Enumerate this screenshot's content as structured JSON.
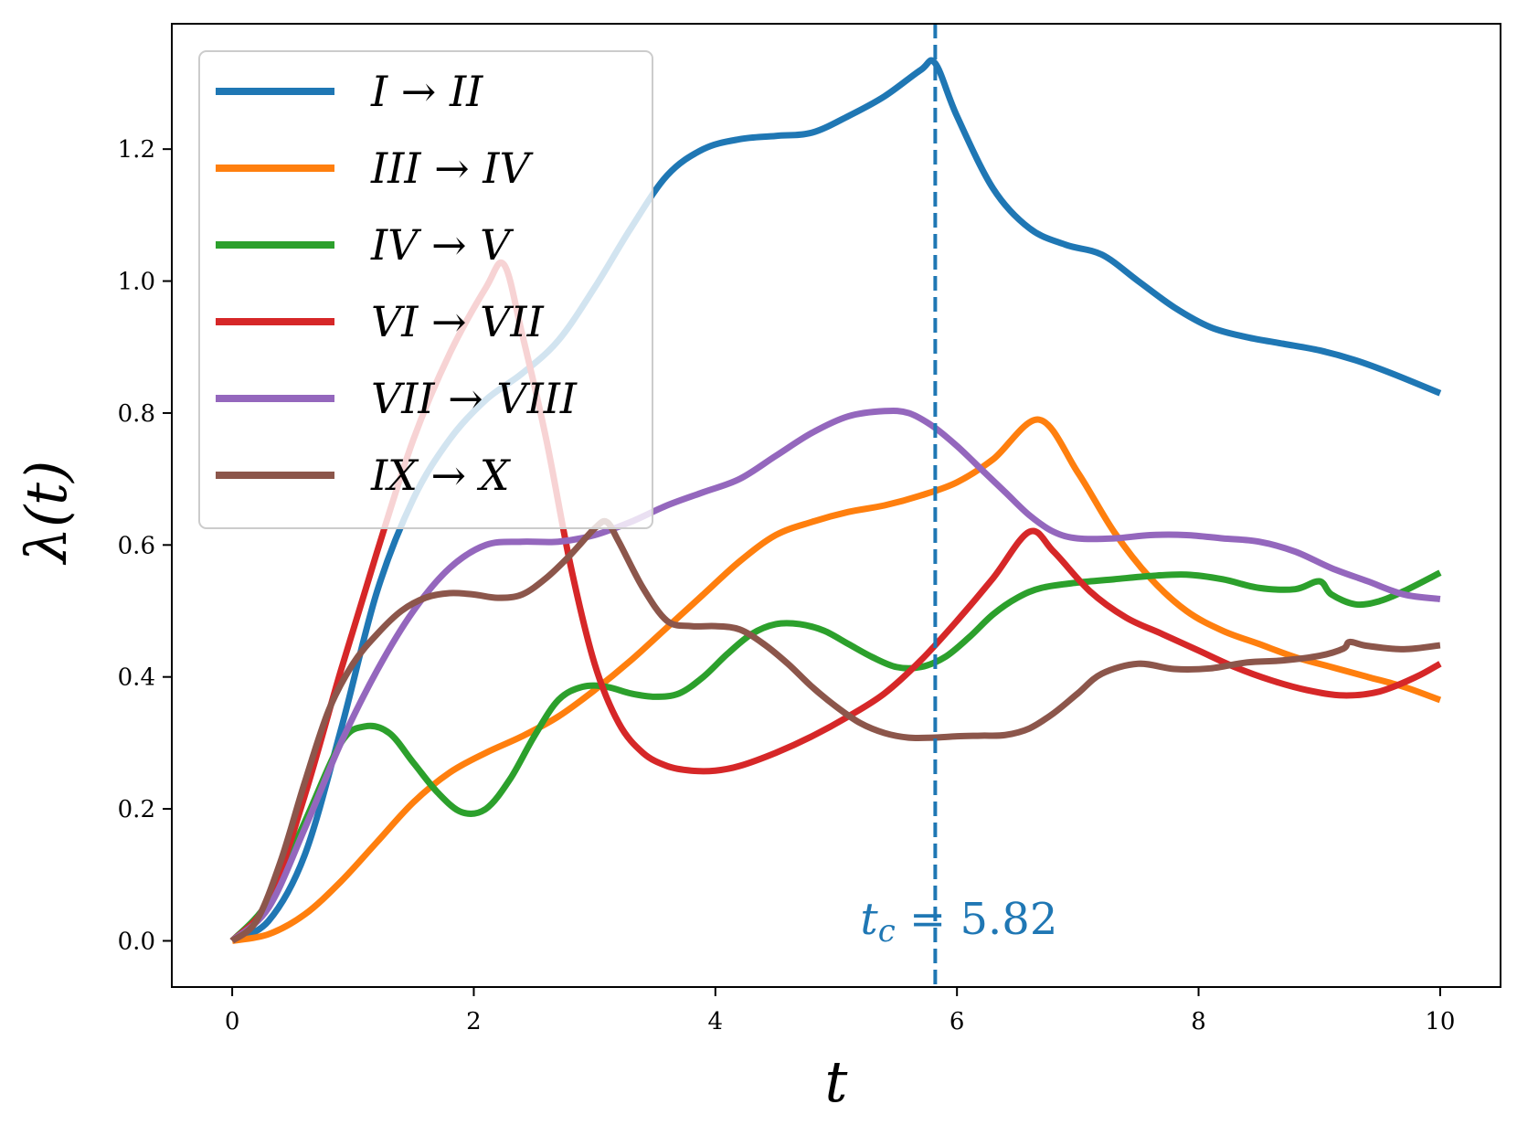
{
  "chart_data": {
    "type": "line",
    "xlabel": "t",
    "ylabel": "λ(t)",
    "xlim": [
      -0.5,
      10.5
    ],
    "ylim": [
      -0.07,
      1.39
    ],
    "xticks": [
      0,
      2,
      4,
      6,
      8,
      10
    ],
    "xtick_labels": [
      "0",
      "2",
      "4",
      "6",
      "8",
      "10"
    ],
    "yticks": [
      0.0,
      0.2,
      0.4,
      0.6,
      0.8,
      1.0,
      1.2
    ],
    "ytick_labels": [
      "0.0",
      "0.2",
      "0.4",
      "0.6",
      "0.8",
      "1.0",
      "1.2"
    ],
    "grid": false,
    "legend_position": "top-left",
    "annotation": {
      "label": "t_c = 5.82",
      "label_main": "t",
      "label_sub": "c",
      "label_rest": " = 5.82",
      "x": 5.82,
      "text_y": 0.01,
      "color": "#1f77b4"
    },
    "series": [
      {
        "name": "I → II",
        "color": "#1f77b4",
        "x": [
          0,
          0.3,
          0.6,
          0.9,
          1.2,
          1.5,
          1.8,
          2.1,
          2.4,
          2.7,
          3.0,
          3.3,
          3.6,
          3.9,
          4.2,
          4.5,
          4.8,
          5.1,
          5.4,
          5.7,
          5.82,
          6.0,
          6.3,
          6.6,
          6.9,
          7.2,
          7.5,
          7.8,
          8.1,
          8.4,
          8.7,
          9.0,
          9.3,
          9.6,
          10.0
        ],
        "y": [
          0.0,
          0.03,
          0.13,
          0.32,
          0.53,
          0.67,
          0.76,
          0.82,
          0.86,
          0.91,
          0.99,
          1.08,
          1.16,
          1.2,
          1.215,
          1.22,
          1.225,
          1.25,
          1.28,
          1.32,
          1.33,
          1.25,
          1.14,
          1.08,
          1.055,
          1.04,
          1.0,
          0.96,
          0.93,
          0.915,
          0.905,
          0.895,
          0.88,
          0.86,
          0.83
        ]
      },
      {
        "name": "III → IV",
        "color": "#ff7f0e",
        "x": [
          0,
          0.3,
          0.6,
          0.9,
          1.2,
          1.5,
          1.8,
          2.1,
          2.4,
          2.7,
          3.0,
          3.3,
          3.6,
          3.9,
          4.2,
          4.5,
          4.8,
          5.1,
          5.4,
          5.7,
          6.0,
          6.3,
          6.68,
          7.0,
          7.3,
          7.6,
          7.9,
          8.2,
          8.5,
          8.8,
          9.1,
          9.4,
          9.7,
          10.0
        ],
        "y": [
          0.0,
          0.01,
          0.04,
          0.09,
          0.15,
          0.21,
          0.255,
          0.285,
          0.31,
          0.34,
          0.38,
          0.425,
          0.475,
          0.525,
          0.575,
          0.615,
          0.635,
          0.65,
          0.66,
          0.675,
          0.695,
          0.73,
          0.79,
          0.71,
          0.62,
          0.55,
          0.5,
          0.47,
          0.45,
          0.43,
          0.415,
          0.4,
          0.385,
          0.365
        ]
      },
      {
        "name": "IV → V",
        "color": "#2ca02c",
        "x": [
          0,
          0.3,
          0.6,
          0.9,
          1.1,
          1.3,
          1.5,
          1.7,
          1.9,
          2.1,
          2.3,
          2.5,
          2.7,
          2.9,
          3.1,
          3.3,
          3.5,
          3.7,
          3.9,
          4.1,
          4.3,
          4.5,
          4.7,
          4.9,
          5.1,
          5.3,
          5.5,
          5.7,
          5.9,
          6.1,
          6.3,
          6.5,
          6.7,
          7.0,
          7.3,
          7.6,
          7.9,
          8.2,
          8.5,
          8.8,
          9.0,
          9.1,
          9.3,
          9.5,
          9.7,
          10.0
        ],
        "y": [
          0.0,
          0.06,
          0.18,
          0.3,
          0.325,
          0.315,
          0.27,
          0.225,
          0.195,
          0.2,
          0.245,
          0.31,
          0.365,
          0.385,
          0.385,
          0.375,
          0.37,
          0.375,
          0.4,
          0.435,
          0.465,
          0.48,
          0.48,
          0.47,
          0.45,
          0.43,
          0.415,
          0.415,
          0.43,
          0.46,
          0.495,
          0.52,
          0.535,
          0.543,
          0.548,
          0.553,
          0.555,
          0.548,
          0.535,
          0.533,
          0.545,
          0.525,
          0.51,
          0.515,
          0.53,
          0.558
        ]
      },
      {
        "name": "VI → VII",
        "color": "#d62728",
        "x": [
          0,
          0.3,
          0.6,
          0.9,
          1.2,
          1.5,
          1.8,
          2.1,
          2.25,
          2.4,
          2.6,
          2.8,
          3.0,
          3.2,
          3.4,
          3.6,
          3.8,
          4.0,
          4.2,
          4.5,
          4.8,
          5.1,
          5.4,
          5.7,
          6.0,
          6.3,
          6.6,
          6.8,
          7.1,
          7.4,
          7.7,
          8.0,
          8.3,
          8.6,
          8.9,
          9.2,
          9.5,
          9.8,
          10.0
        ],
        "y": [
          0.0,
          0.06,
          0.22,
          0.41,
          0.59,
          0.76,
          0.89,
          0.99,
          1.025,
          0.92,
          0.76,
          0.57,
          0.42,
          0.33,
          0.285,
          0.265,
          0.258,
          0.258,
          0.265,
          0.285,
          0.31,
          0.34,
          0.375,
          0.425,
          0.485,
          0.55,
          0.62,
          0.59,
          0.53,
          0.49,
          0.465,
          0.44,
          0.415,
          0.395,
          0.38,
          0.372,
          0.378,
          0.4,
          0.42
        ]
      },
      {
        "name": "VII → VIII",
        "color": "#9467bd",
        "x": [
          0,
          0.3,
          0.6,
          0.9,
          1.2,
          1.5,
          1.8,
          2.1,
          2.4,
          2.7,
          3.0,
          3.3,
          3.6,
          3.9,
          4.2,
          4.5,
          4.8,
          5.1,
          5.4,
          5.6,
          5.8,
          6.0,
          6.2,
          6.4,
          6.6,
          6.8,
          7.0,
          7.3,
          7.6,
          7.9,
          8.2,
          8.5,
          8.8,
          9.1,
          9.4,
          9.7,
          10.0
        ],
        "y": [
          0.0,
          0.05,
          0.17,
          0.3,
          0.41,
          0.5,
          0.565,
          0.6,
          0.605,
          0.605,
          0.615,
          0.635,
          0.66,
          0.68,
          0.7,
          0.735,
          0.77,
          0.795,
          0.803,
          0.8,
          0.78,
          0.75,
          0.715,
          0.68,
          0.645,
          0.62,
          0.61,
          0.61,
          0.615,
          0.615,
          0.61,
          0.605,
          0.59,
          0.565,
          0.545,
          0.525,
          0.518
        ]
      },
      {
        "name": "IX → X",
        "color": "#8c564b",
        "x": [
          0,
          0.2,
          0.4,
          0.6,
          0.8,
          1.0,
          1.2,
          1.4,
          1.6,
          1.8,
          2.0,
          2.2,
          2.4,
          2.6,
          2.8,
          3.0,
          3.1,
          3.2,
          3.4,
          3.6,
          3.8,
          4.0,
          4.2,
          4.4,
          4.6,
          4.8,
          5.0,
          5.2,
          5.4,
          5.6,
          5.8,
          6.0,
          6.2,
          6.4,
          6.6,
          6.8,
          7.0,
          7.2,
          7.5,
          7.8,
          8.1,
          8.4,
          8.7,
          9.0,
          9.2,
          9.25,
          9.4,
          9.7,
          10.0
        ],
        "y": [
          0.0,
          0.03,
          0.12,
          0.24,
          0.35,
          0.42,
          0.465,
          0.5,
          0.52,
          0.527,
          0.525,
          0.52,
          0.525,
          0.55,
          0.585,
          0.625,
          0.635,
          0.605,
          0.535,
          0.485,
          0.477,
          0.477,
          0.472,
          0.45,
          0.42,
          0.385,
          0.355,
          0.33,
          0.315,
          0.308,
          0.308,
          0.31,
          0.311,
          0.312,
          0.322,
          0.345,
          0.375,
          0.405,
          0.42,
          0.412,
          0.413,
          0.422,
          0.425,
          0.432,
          0.443,
          0.453,
          0.447,
          0.442,
          0.448
        ]
      }
    ]
  }
}
